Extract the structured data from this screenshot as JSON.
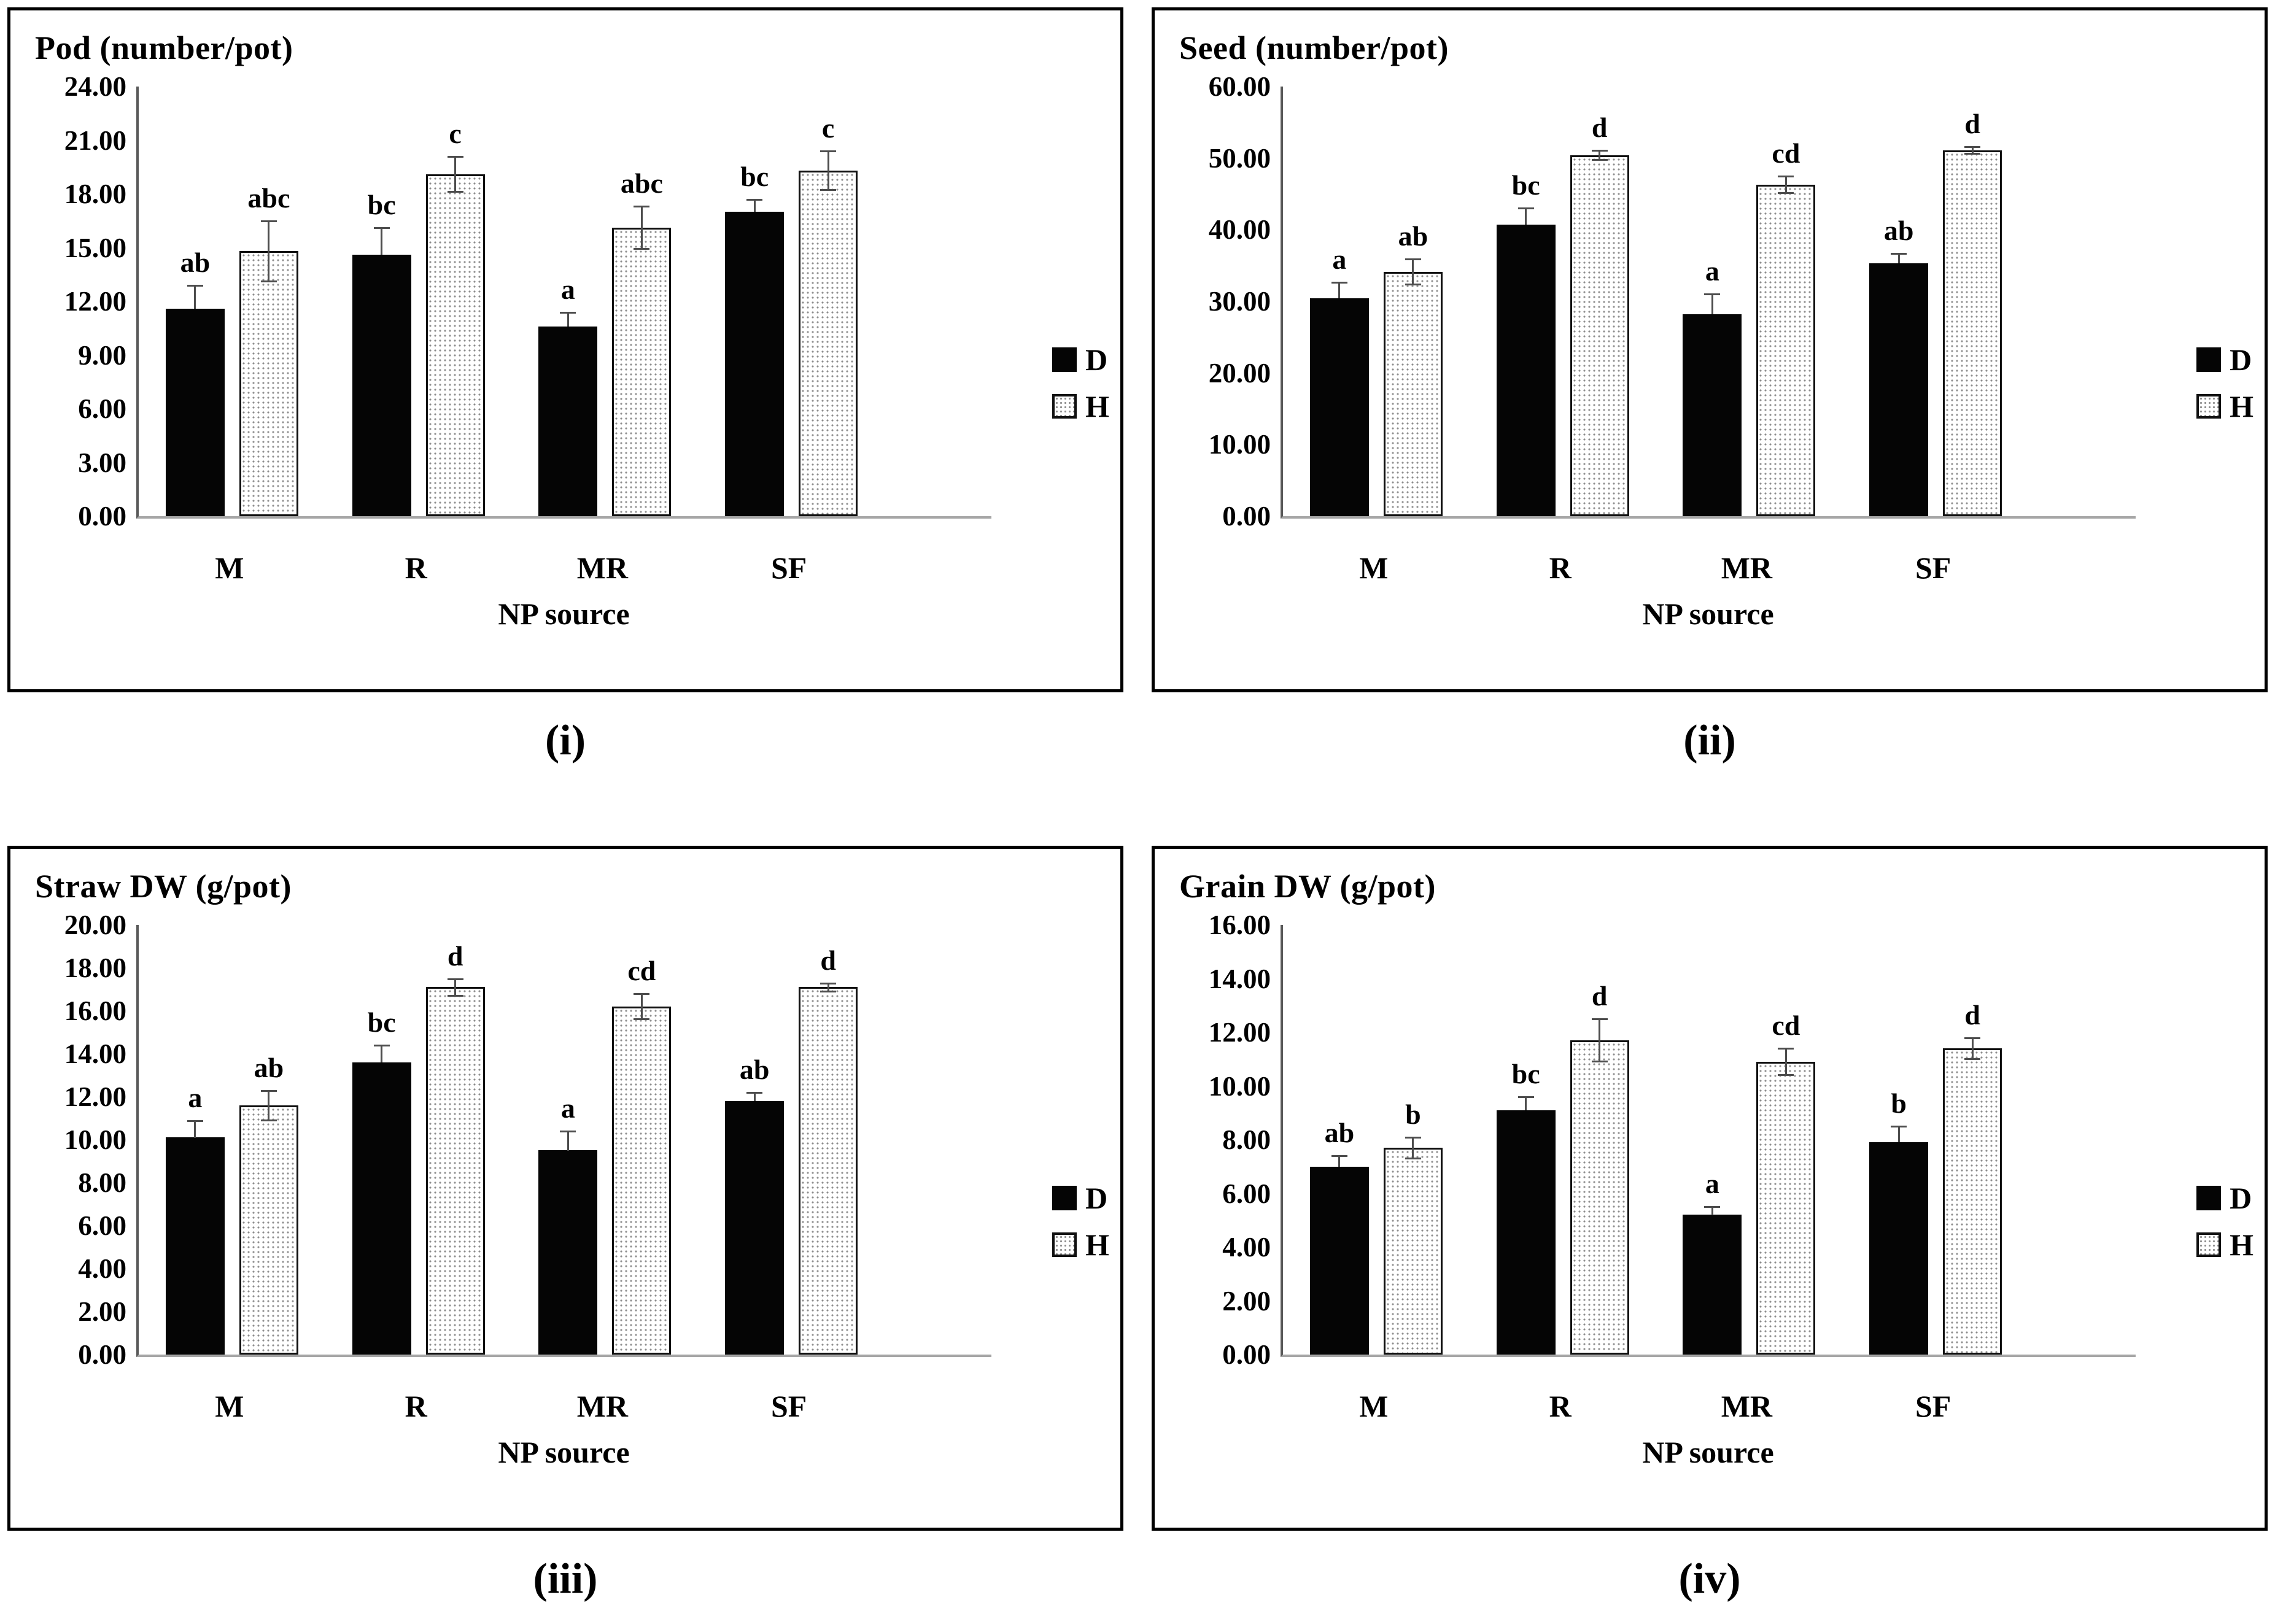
{
  "figure": {
    "x_axis_title": "NP source",
    "categories": [
      "M",
      "R",
      "MR",
      "SF"
    ],
    "legend": [
      {
        "label": "D",
        "swatch": "solid-black-square"
      },
      {
        "label": "H",
        "swatch": "dotted-white-square"
      }
    ],
    "colors": {
      "bar_d_fill": "#050505",
      "bar_h_fill": "#ffffff",
      "bar_h_dots": "#8f8f8f",
      "bar_h_border": "#111111",
      "error_bar": "#4d4d4d",
      "y_axis_line": "#595959",
      "baseline": "#a6a6a6",
      "text": "#000000",
      "panel_border": "#000000"
    }
  },
  "chart_data": [
    {
      "type": "bar",
      "title": "Pod (number/pot)",
      "caption": "(i)",
      "xlabel": "NP source",
      "categories": [
        "M",
        "R",
        "MR",
        "SF"
      ],
      "ylim": [
        0,
        24
      ],
      "ytick_step": 3,
      "ytick_labels": [
        "0.00",
        "3.00",
        "6.00",
        "9.00",
        "12.00",
        "15.00",
        "18.00",
        "21.00",
        "24.00"
      ],
      "grid": false,
      "legend_position": "right",
      "series": [
        {
          "name": "D",
          "values": [
            11.6,
            14.6,
            10.6,
            17.0
          ],
          "errors": [
            1.3,
            1.5,
            0.8,
            0.7
          ],
          "letters": [
            "ab",
            "bc",
            "a",
            "bc"
          ]
        },
        {
          "name": "H",
          "values": [
            14.8,
            19.1,
            16.1,
            19.3
          ],
          "errors": [
            1.7,
            1.0,
            1.2,
            1.1
          ],
          "letters": [
            "abc",
            "c",
            "abc",
            "c"
          ]
        }
      ]
    },
    {
      "type": "bar",
      "title": "Seed (number/pot)",
      "caption": "(ii)",
      "xlabel": "NP source",
      "categories": [
        "M",
        "R",
        "MR",
        "SF"
      ],
      "ylim": [
        0,
        60
      ],
      "ytick_step": 10,
      "ytick_labels": [
        "0.00",
        "10.00",
        "20.00",
        "30.00",
        "40.00",
        "50.00",
        "60.00"
      ],
      "grid": false,
      "legend_position": "right",
      "series": [
        {
          "name": "D",
          "values": [
            30.4,
            40.7,
            28.2,
            35.3
          ],
          "errors": [
            2.3,
            2.3,
            2.8,
            1.4
          ],
          "letters": [
            "a",
            "bc",
            "a",
            "ab"
          ]
        },
        {
          "name": "H",
          "values": [
            34.1,
            50.4,
            46.3,
            51.1
          ],
          "errors": [
            1.8,
            0.7,
            1.2,
            0.5
          ],
          "letters": [
            "ab",
            "d",
            "cd",
            "d"
          ]
        }
      ]
    },
    {
      "type": "bar",
      "title": "Straw DW (g/pot)",
      "caption": "(iii)",
      "xlabel": "NP source",
      "categories": [
        "M",
        "R",
        "MR",
        "SF"
      ],
      "ylim": [
        0,
        20
      ],
      "ytick_step": 2,
      "ytick_labels": [
        "0.00",
        "2.00",
        "4.00",
        "6.00",
        "8.00",
        "10.00",
        "12.00",
        "14.00",
        "16.00",
        "18.00",
        "20.00"
      ],
      "grid": false,
      "legend_position": "right",
      "series": [
        {
          "name": "D",
          "values": [
            10.1,
            13.6,
            9.5,
            11.8
          ],
          "errors": [
            0.8,
            0.8,
            0.9,
            0.4
          ],
          "letters": [
            "a",
            "bc",
            "a",
            "ab"
          ]
        },
        {
          "name": "H",
          "values": [
            11.6,
            17.1,
            16.2,
            17.1
          ],
          "errors": [
            0.7,
            0.4,
            0.6,
            0.2
          ],
          "letters": [
            "ab",
            "d",
            "cd",
            "d"
          ]
        }
      ]
    },
    {
      "type": "bar",
      "title": "Grain DW (g/pot)",
      "caption": "(iv)",
      "xlabel": "NP source",
      "categories": [
        "M",
        "R",
        "MR",
        "SF"
      ],
      "ylim": [
        0,
        16
      ],
      "ytick_step": 2,
      "ytick_labels": [
        "0.00",
        "2.00",
        "4.00",
        "6.00",
        "8.00",
        "10.00",
        "12.00",
        "14.00",
        "16.00"
      ],
      "grid": false,
      "legend_position": "right",
      "series": [
        {
          "name": "D",
          "values": [
            7.0,
            9.1,
            5.2,
            7.9
          ],
          "errors": [
            0.4,
            0.5,
            0.3,
            0.6
          ],
          "letters": [
            "ab",
            "bc",
            "a",
            "b"
          ]
        },
        {
          "name": "H",
          "values": [
            7.7,
            11.7,
            10.9,
            11.4
          ],
          "errors": [
            0.4,
            0.8,
            0.5,
            0.4
          ],
          "letters": [
            "b",
            "d",
            "cd",
            "d"
          ]
        }
      ]
    }
  ]
}
